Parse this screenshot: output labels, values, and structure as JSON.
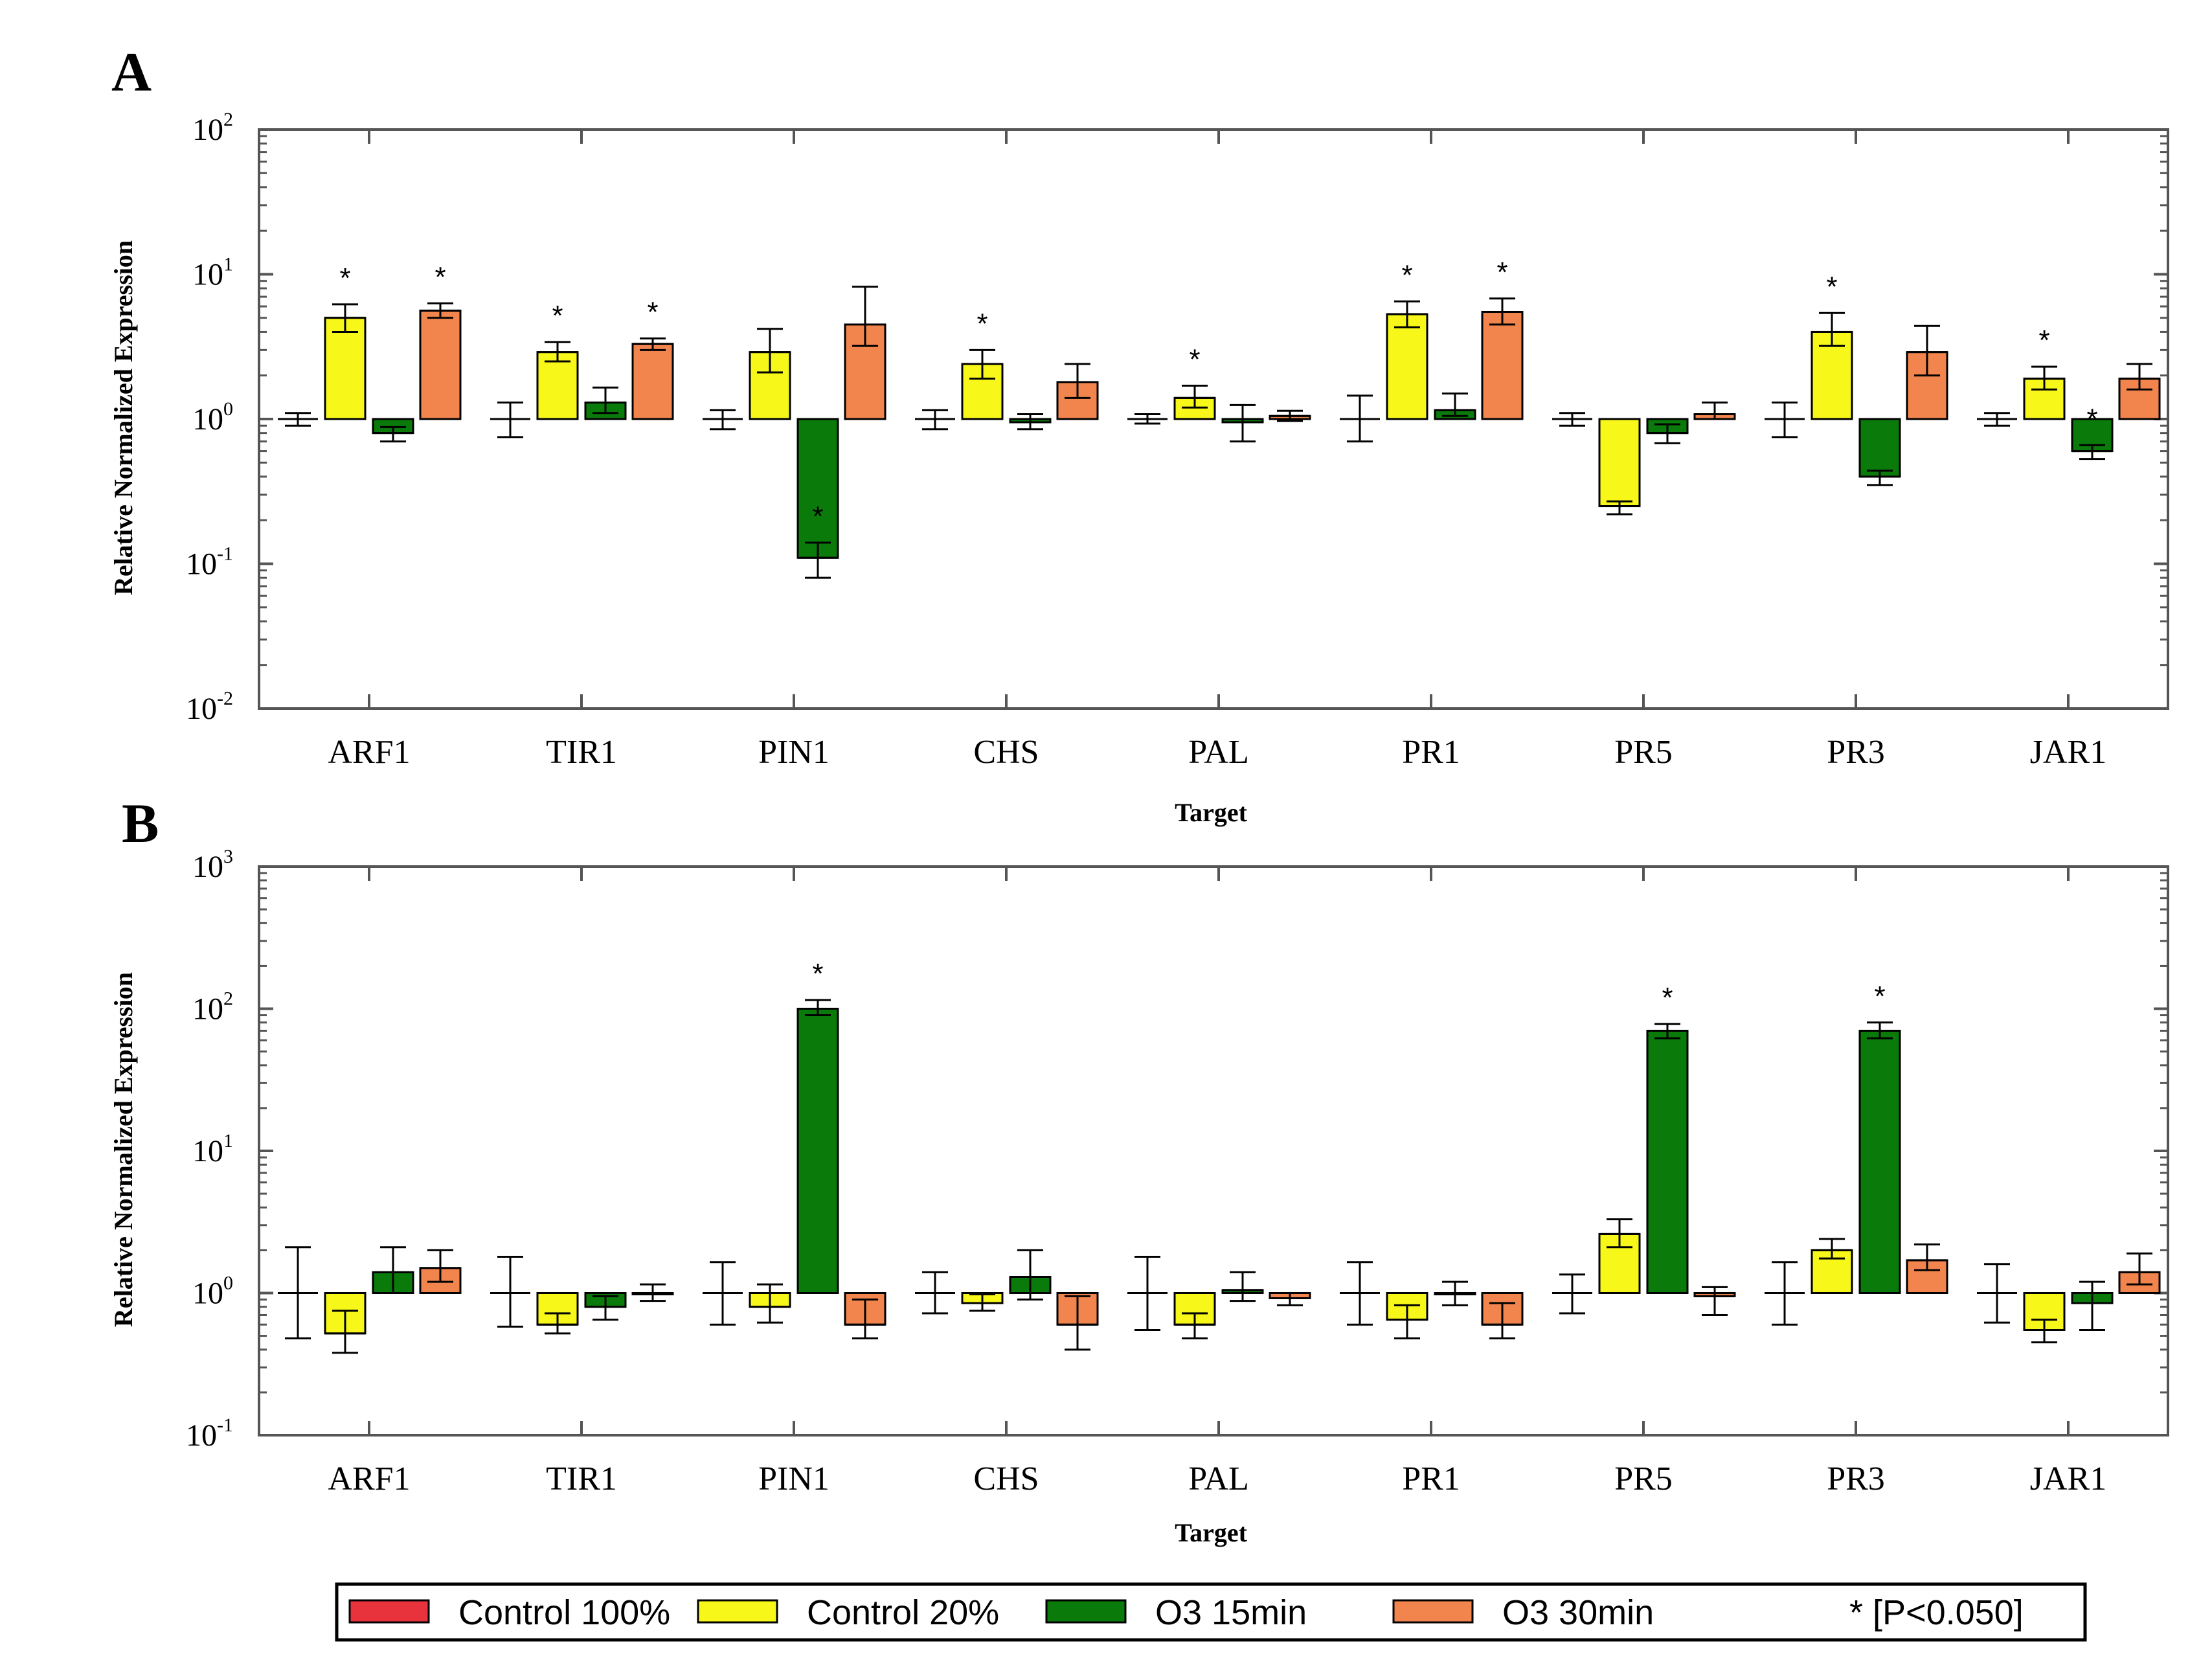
{
  "colors": {
    "Control 100%": "#e8323c",
    "Control 20%": "#f7f71a",
    "O3 15min": "#0a7a0a",
    "O3 30min": "#f2854e",
    "frame": "#555555"
  },
  "legend": {
    "items": [
      "Control 100%",
      "Control 20%",
      "O3 15min",
      "O3 30min"
    ],
    "significance": "* [P<0.050]"
  },
  "chart_data": [
    {
      "type": "bar",
      "panel": "A",
      "title": "",
      "xlabel": "Target",
      "ylabel": "Relative Normalized Expression",
      "yscale": "log",
      "ylim": [
        0.01,
        100
      ],
      "yticks": [
        {
          "base": "10",
          "exp": "-2"
        },
        {
          "base": "10",
          "exp": "-1"
        },
        {
          "base": "10",
          "exp": "0"
        },
        {
          "base": "10",
          "exp": "1"
        },
        {
          "base": "10",
          "exp": "2"
        }
      ],
      "categories": [
        "ARF1",
        "TIR1",
        "PIN1",
        "CHS",
        "PAL",
        "PR1",
        "PR5",
        "PR3",
        "JAR1"
      ],
      "series": [
        {
          "name": "Control 100%",
          "values": [
            1,
            1,
            1,
            1,
            1,
            1,
            1,
            1,
            1
          ],
          "err_low": [
            0.9,
            0.75,
            0.85,
            0.85,
            0.93,
            0.7,
            0.9,
            0.75,
            0.9
          ],
          "err_high": [
            1.1,
            1.3,
            1.15,
            1.15,
            1.08,
            1.45,
            1.1,
            1.3,
            1.1
          ],
          "significant": [
            false,
            false,
            false,
            false,
            false,
            false,
            false,
            false,
            false
          ]
        },
        {
          "name": "Control 20%",
          "values": [
            5.0,
            2.9,
            2.9,
            2.4,
            1.4,
            5.3,
            0.25,
            4.0,
            1.9
          ],
          "err_low": [
            4.0,
            2.5,
            2.1,
            1.9,
            1.2,
            4.3,
            0.22,
            3.2,
            1.6
          ],
          "err_high": [
            6.2,
            3.4,
            4.2,
            3.0,
            1.7,
            6.5,
            0.27,
            5.4,
            2.3
          ],
          "significant": [
            true,
            true,
            false,
            true,
            true,
            true,
            false,
            true,
            true
          ]
        },
        {
          "name": "O3 15min",
          "values": [
            0.8,
            1.3,
            0.11,
            0.95,
            0.95,
            1.15,
            0.8,
            0.4,
            0.6
          ],
          "err_low": [
            0.7,
            1.1,
            0.08,
            0.85,
            0.7,
            1.05,
            0.68,
            0.35,
            0.53
          ],
          "err_high": [
            0.88,
            1.65,
            0.14,
            1.08,
            1.25,
            1.5,
            0.92,
            0.44,
            0.66
          ],
          "significant": [
            false,
            false,
            true,
            false,
            false,
            false,
            false,
            false,
            true
          ]
        },
        {
          "name": "O3 30min",
          "values": [
            5.6,
            3.3,
            4.5,
            1.8,
            1.05,
            5.5,
            1.08,
            2.9,
            1.9
          ],
          "err_low": [
            5.0,
            3.0,
            3.2,
            1.4,
            0.97,
            4.5,
            1.0,
            2.0,
            1.6
          ],
          "err_high": [
            6.3,
            3.6,
            8.2,
            2.4,
            1.14,
            6.8,
            1.3,
            4.4,
            2.4
          ],
          "significant": [
            true,
            true,
            false,
            false,
            false,
            true,
            false,
            false,
            false
          ]
        }
      ]
    },
    {
      "type": "bar",
      "panel": "B",
      "title": "",
      "xlabel": "Target",
      "ylabel": "Relative Normalized Expression",
      "yscale": "log",
      "ylim": [
        0.1,
        1000
      ],
      "yticks": [
        {
          "base": "10",
          "exp": "-1"
        },
        {
          "base": "10",
          "exp": "0"
        },
        {
          "base": "10",
          "exp": "1"
        },
        {
          "base": "10",
          "exp": "2"
        },
        {
          "base": "10",
          "exp": "3"
        }
      ],
      "categories": [
        "ARF1",
        "TIR1",
        "PIN1",
        "CHS",
        "PAL",
        "PR1",
        "PR5",
        "PR3",
        "JAR1"
      ],
      "series": [
        {
          "name": "Control 100%",
          "values": [
            1,
            1,
            1,
            1,
            1,
            1,
            1,
            1,
            1
          ],
          "err_low": [
            0.48,
            0.58,
            0.6,
            0.72,
            0.55,
            0.6,
            0.72,
            0.6,
            0.62
          ],
          "err_high": [
            2.1,
            1.8,
            1.65,
            1.4,
            1.8,
            1.65,
            1.35,
            1.65,
            1.6
          ],
          "significant": [
            false,
            false,
            false,
            false,
            false,
            false,
            false,
            false,
            false
          ]
        },
        {
          "name": "Control 20%",
          "values": [
            0.52,
            0.6,
            0.8,
            0.85,
            0.6,
            0.65,
            2.6,
            2.0,
            0.55
          ],
          "err_low": [
            0.38,
            0.52,
            0.62,
            0.75,
            0.48,
            0.48,
            2.1,
            1.75,
            0.45
          ],
          "err_high": [
            0.75,
            0.72,
            1.15,
            0.98,
            0.72,
            0.82,
            3.3,
            2.4,
            0.65
          ],
          "significant": [
            false,
            false,
            false,
            false,
            false,
            false,
            false,
            false,
            false
          ]
        },
        {
          "name": "O3 15min",
          "values": [
            1.4,
            0.8,
            100,
            1.3,
            1.05,
            1.0,
            70,
            70,
            0.85
          ],
          "err_low": [
            1.0,
            0.65,
            90,
            0.9,
            0.88,
            0.82,
            62,
            62,
            0.55
          ],
          "err_high": [
            2.1,
            0.95,
            115,
            2.0,
            1.4,
            1.2,
            78,
            80,
            1.2
          ],
          "significant": [
            false,
            false,
            true,
            false,
            false,
            false,
            true,
            true,
            false
          ]
        },
        {
          "name": "O3 30min",
          "values": [
            1.5,
            1.0,
            0.6,
            0.6,
            0.92,
            0.6,
            0.95,
            1.7,
            1.4
          ],
          "err_low": [
            1.2,
            0.88,
            0.48,
            0.4,
            0.82,
            0.48,
            0.7,
            1.45,
            1.15
          ],
          "err_high": [
            2.0,
            1.15,
            0.9,
            0.95,
            1.0,
            0.85,
            1.1,
            2.2,
            1.9
          ],
          "significant": [
            false,
            false,
            false,
            false,
            false,
            false,
            false,
            false,
            false
          ]
        }
      ]
    }
  ]
}
